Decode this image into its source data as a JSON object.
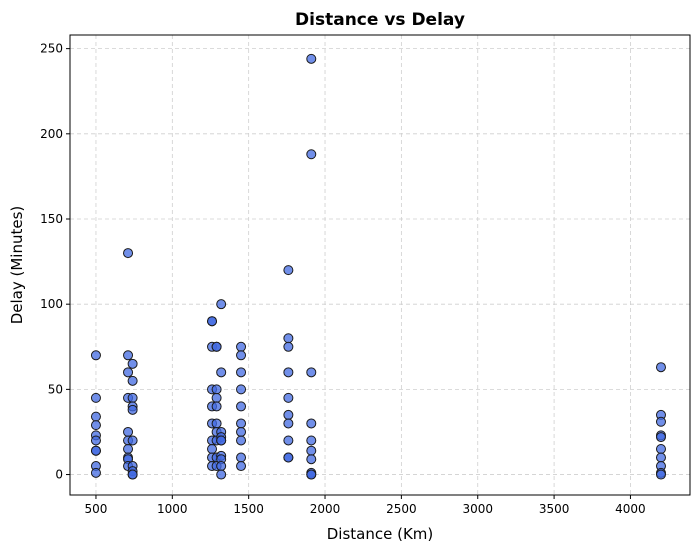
{
  "chart_data": {
    "type": "scatter",
    "title": "Distance vs Delay",
    "xlabel": "Distance (Km)",
    "ylabel": "Delay (Minutes)",
    "xlim": [
      330,
      4390
    ],
    "ylim": [
      -12,
      258
    ],
    "xticks": [
      500,
      1000,
      1500,
      2000,
      2500,
      3000,
      3500,
      4000
    ],
    "yticks": [
      0,
      50,
      100,
      150,
      200,
      250
    ],
    "grid": true,
    "marker_color": "#4169E1",
    "marker_edge_color": "#1a1a1a",
    "points": [
      [
        500,
        70
      ],
      [
        500,
        45
      ],
      [
        500,
        34
      ],
      [
        500,
        29
      ],
      [
        500,
        23
      ],
      [
        500,
        20
      ],
      [
        500,
        14
      ],
      [
        500,
        14
      ],
      [
        500,
        5
      ],
      [
        500,
        1
      ],
      [
        710,
        130
      ],
      [
        710,
        70
      ],
      [
        710,
        60
      ],
      [
        710,
        45
      ],
      [
        710,
        25
      ],
      [
        710,
        20
      ],
      [
        710,
        15
      ],
      [
        710,
        10
      ],
      [
        710,
        9
      ],
      [
        710,
        5
      ],
      [
        740,
        65
      ],
      [
        740,
        55
      ],
      [
        740,
        45
      ],
      [
        740,
        40
      ],
      [
        740,
        38
      ],
      [
        740,
        20
      ],
      [
        740,
        5
      ],
      [
        740,
        2
      ],
      [
        740,
        0
      ],
      [
        740,
        0
      ],
      [
        1260,
        90
      ],
      [
        1260,
        90
      ],
      [
        1260,
        75
      ],
      [
        1260,
        50
      ],
      [
        1260,
        40
      ],
      [
        1260,
        30
      ],
      [
        1260,
        20
      ],
      [
        1260,
        15
      ],
      [
        1260,
        10
      ],
      [
        1260,
        5
      ],
      [
        1290,
        75
      ],
      [
        1290,
        75
      ],
      [
        1290,
        50
      ],
      [
        1290,
        45
      ],
      [
        1290,
        40
      ],
      [
        1290,
        30
      ],
      [
        1290,
        25
      ],
      [
        1290,
        20
      ],
      [
        1290,
        10
      ],
      [
        1290,
        5
      ],
      [
        1320,
        100
      ],
      [
        1320,
        60
      ],
      [
        1320,
        25
      ],
      [
        1320,
        22
      ],
      [
        1320,
        20
      ],
      [
        1320,
        20
      ],
      [
        1320,
        11
      ],
      [
        1320,
        9
      ],
      [
        1320,
        5
      ],
      [
        1320,
        0
      ],
      [
        1450,
        75
      ],
      [
        1450,
        70
      ],
      [
        1450,
        60
      ],
      [
        1450,
        50
      ],
      [
        1450,
        40
      ],
      [
        1450,
        30
      ],
      [
        1450,
        25
      ],
      [
        1450,
        20
      ],
      [
        1450,
        10
      ],
      [
        1450,
        5
      ],
      [
        1760,
        120
      ],
      [
        1760,
        80
      ],
      [
        1760,
        75
      ],
      [
        1760,
        60
      ],
      [
        1760,
        45
      ],
      [
        1760,
        35
      ],
      [
        1760,
        30
      ],
      [
        1760,
        20
      ],
      [
        1760,
        10
      ],
      [
        1760,
        10
      ],
      [
        1910,
        244
      ],
      [
        1910,
        188
      ],
      [
        1910,
        60
      ],
      [
        1910,
        30
      ],
      [
        1910,
        20
      ],
      [
        1910,
        14
      ],
      [
        1910,
        9
      ],
      [
        1910,
        1
      ],
      [
        1910,
        0
      ],
      [
        1910,
        0
      ],
      [
        4200,
        63
      ],
      [
        4200,
        35
      ],
      [
        4200,
        31
      ],
      [
        4200,
        23
      ],
      [
        4200,
        22
      ],
      [
        4200,
        15
      ],
      [
        4200,
        10
      ],
      [
        4200,
        5
      ],
      [
        4200,
        1
      ],
      [
        4200,
        0
      ]
    ]
  }
}
